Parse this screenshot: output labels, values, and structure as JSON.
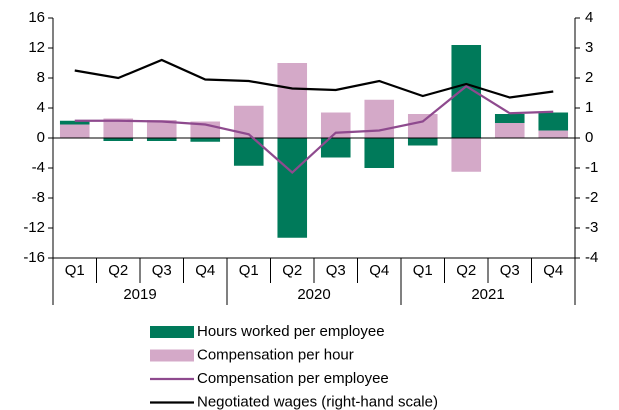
{
  "chart_data": {
    "type": "bar",
    "categories": [
      "Q1",
      "Q2",
      "Q3",
      "Q4",
      "Q1",
      "Q2",
      "Q3",
      "Q4",
      "Q1",
      "Q2",
      "Q3",
      "Q4"
    ],
    "years": [
      "2019",
      "2020",
      "2021"
    ],
    "series": [
      {
        "name": "Hours worked per employee",
        "type": "bar",
        "color": "#007a5a",
        "values": [
          0.5,
          -0.4,
          -0.4,
          -0.5,
          -3.7,
          -13.3,
          -2.6,
          -4.0,
          -1.0,
          12.4,
          1.2,
          2.4
        ]
      },
      {
        "name": "Compensation per hour",
        "type": "bar",
        "color": "#d4a9c8",
        "values": [
          1.8,
          2.6,
          2.4,
          2.2,
          4.3,
          10.0,
          3.4,
          5.1,
          3.2,
          -4.5,
          2.0,
          1.0
        ]
      },
      {
        "name": "Compensation per employee",
        "type": "line",
        "color": "#8e4a8e",
        "values": [
          2.3,
          2.3,
          2.2,
          1.8,
          0.5,
          -4.6,
          0.7,
          1.0,
          2.2,
          6.9,
          3.3,
          3.5
        ]
      },
      {
        "name": "Negotiated wages (right-hand scale)",
        "type": "line",
        "color": "#000000",
        "axis": "y2",
        "values": [
          2.25,
          2.0,
          2.6,
          1.95,
          1.9,
          1.65,
          1.6,
          1.9,
          1.4,
          1.8,
          1.35,
          1.55
        ]
      }
    ],
    "ylim": [
      -16,
      16
    ],
    "yticks": [
      -16,
      -12,
      -8,
      -4,
      0,
      4,
      8,
      12,
      16
    ],
    "y2lim": [
      -4,
      4
    ],
    "y2ticks": [
      -4,
      -3,
      -2,
      -1,
      0,
      1,
      2,
      3,
      4
    ]
  }
}
